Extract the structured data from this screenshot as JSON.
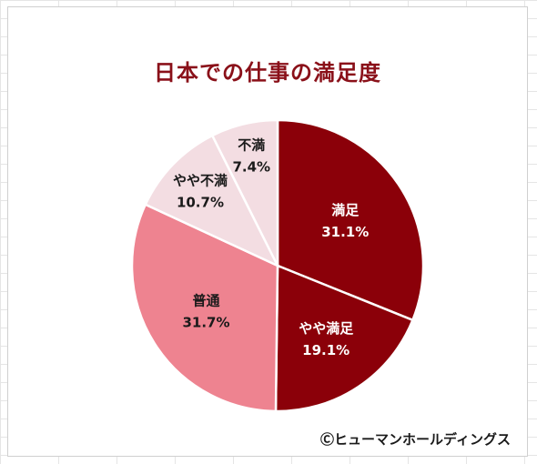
{
  "chart_data": {
    "type": "pie",
    "title": "日本での仕事の満足度",
    "categories": [
      "満足",
      "やや満足",
      "普通",
      "やや不満",
      "不満"
    ],
    "values": [
      31.1,
      19.1,
      31.7,
      10.7,
      7.4
    ],
    "value_labels": [
      "31.1%",
      "19.1%",
      "31.7%",
      "10.7%",
      "7.4%"
    ],
    "colors": [
      "#8b0009",
      "#8b0009",
      "#ee8390",
      "#f3dde2",
      "#f3dde2"
    ],
    "label_colors": [
      "#ffffff",
      "#ffffff",
      "#1a1a1a",
      "#1a1a1a",
      "#1a1a1a"
    ],
    "legend": "none"
  },
  "copyright": "Ⓒヒューマンホールディングス"
}
